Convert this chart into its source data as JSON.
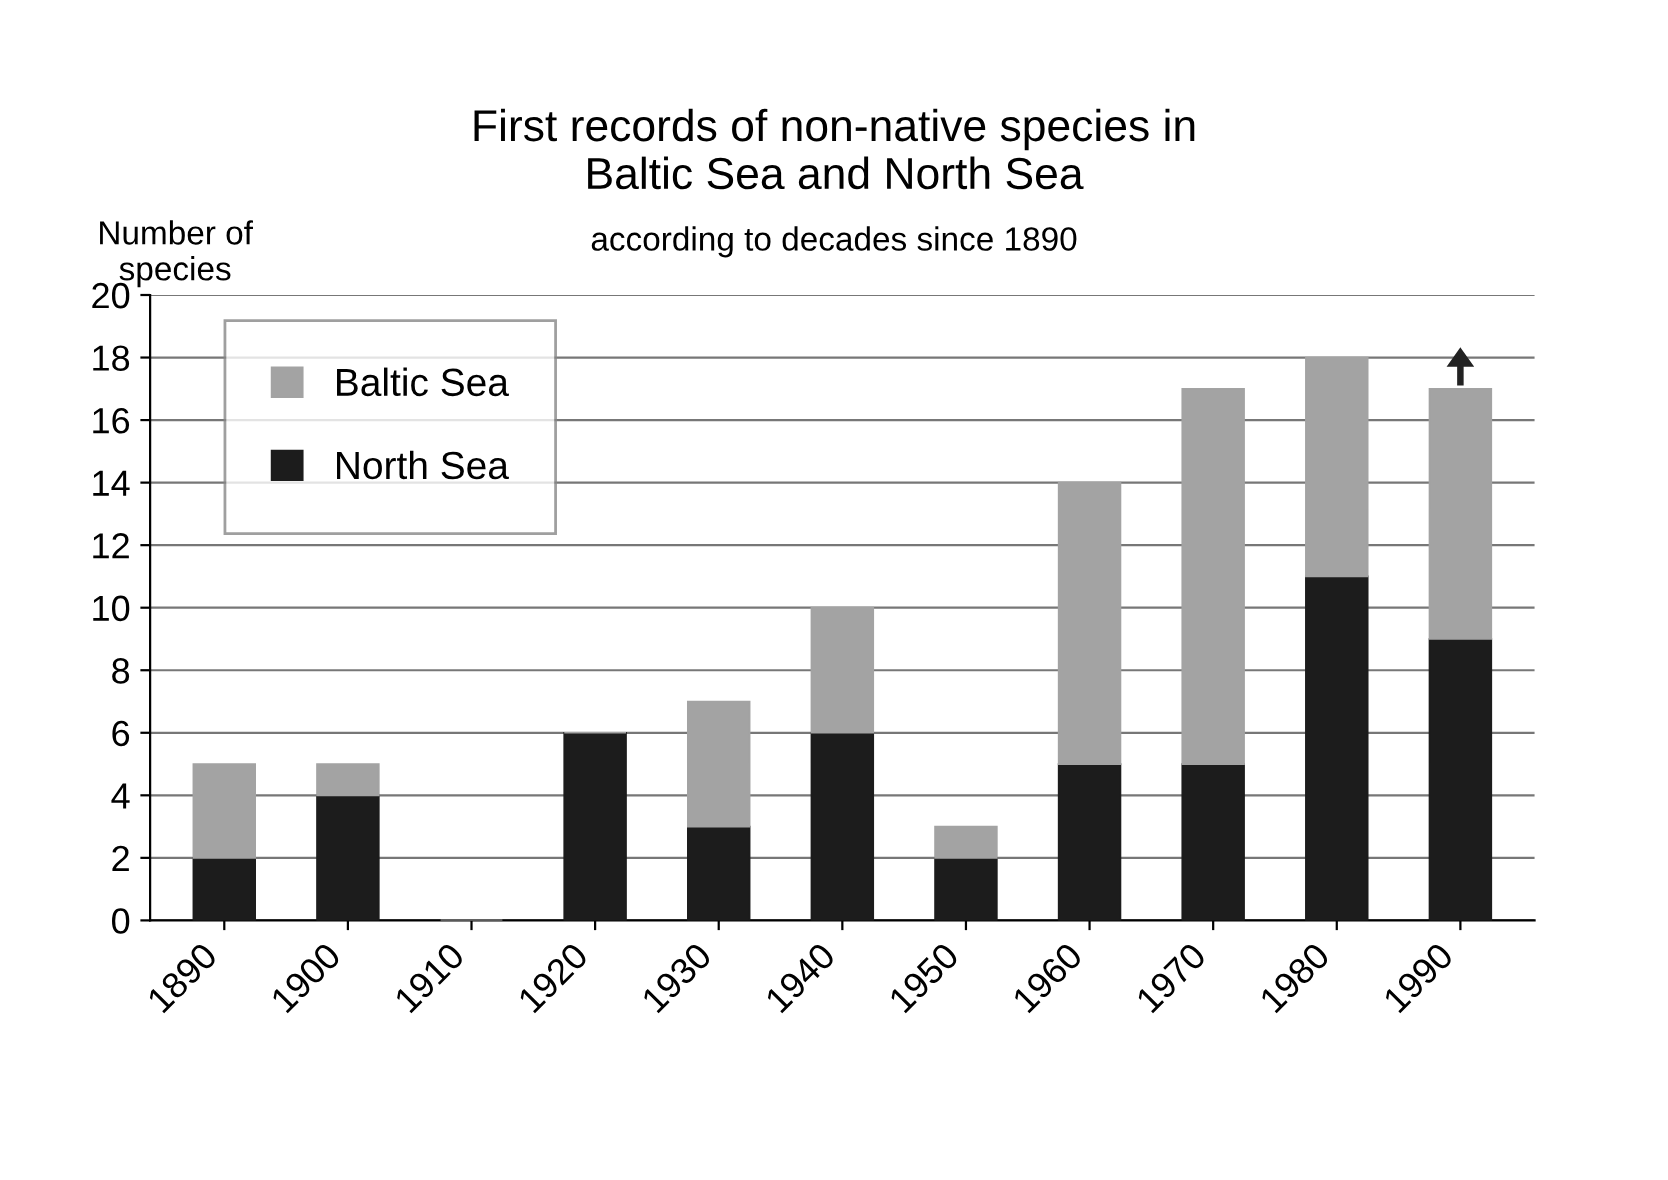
{
  "chart_data": {
    "type": "bar",
    "title": "First records of non-native species in\nBaltic Sea and North Sea",
    "subtitle": "according to decades since 1890",
    "ylabel": "Number of\nspecies",
    "categories": [
      "1890",
      "1900",
      "1910",
      "1920",
      "1930",
      "1940",
      "1950",
      "1960",
      "1970",
      "1980",
      "1990"
    ],
    "stacked": true,
    "series": [
      {
        "name": "North Sea",
        "color": "#1c1c1c",
        "values": [
          2,
          4,
          0,
          6,
          3,
          6,
          2,
          5,
          5,
          11,
          9
        ]
      },
      {
        "name": "Baltic Sea",
        "color": "#a3a3a3",
        "values": [
          3,
          1,
          0,
          0,
          4,
          4,
          1,
          9,
          12,
          7,
          8
        ]
      }
    ],
    "ylim": [
      0,
      20
    ],
    "yticks": [
      0,
      2,
      4,
      6,
      8,
      10,
      12,
      14,
      16,
      18,
      20
    ],
    "grid": "y",
    "legend": "top left"
  }
}
